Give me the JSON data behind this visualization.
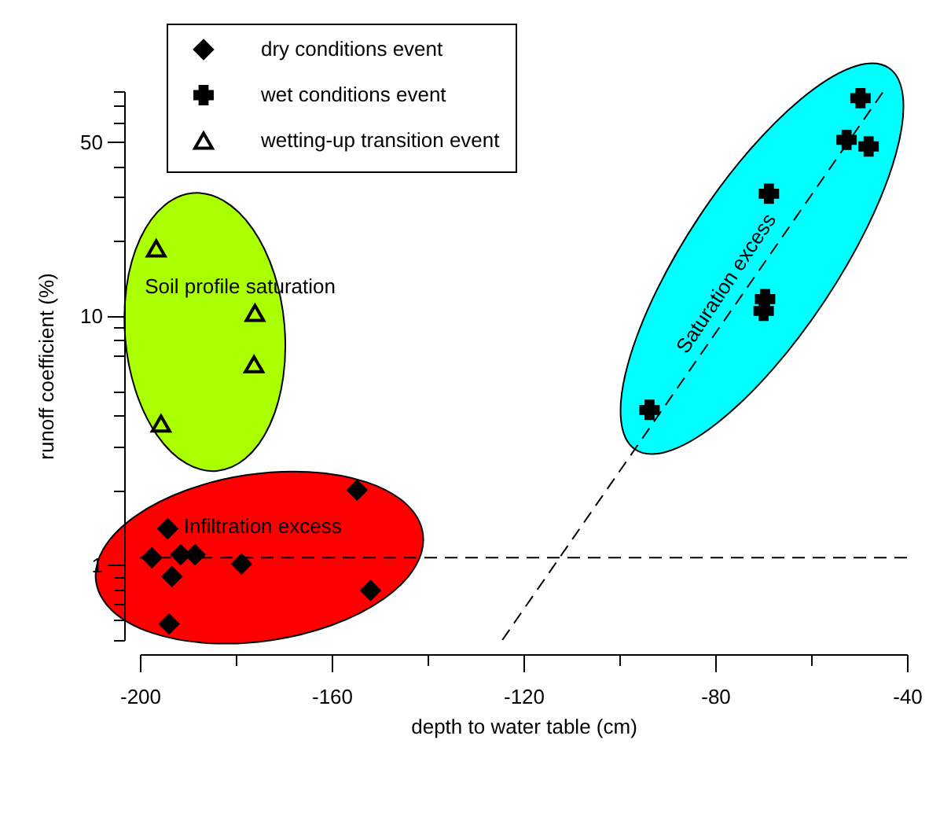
{
  "chart_data": {
    "type": "scatter",
    "xlabel": "depth to water table (cm)",
    "ylabel": "runoff coefficient (%)",
    "xlim": [
      -200,
      -40
    ],
    "xticks": [
      -200,
      {
        "value": -180,
        "label": null
      },
      -160,
      {
        "value": -140,
        "label": null
      },
      -120,
      {
        "value": -100,
        "label": null
      },
      -80,
      {
        "value": -60,
        "label": null
      },
      -40
    ],
    "ylim": [
      0.5,
      80
    ],
    "yticks": [
      {
        "value": 0.5,
        "label": null
      },
      {
        "value": 0.6,
        "label": null
      },
      {
        "value": 0.7,
        "label": null
      },
      {
        "value": 0.8,
        "label": null
      },
      {
        "value": 0.9,
        "label": null
      },
      1,
      {
        "value": 2,
        "label": null
      },
      {
        "value": 3,
        "label": null
      },
      {
        "value": 4,
        "label": null
      },
      {
        "value": 5,
        "label": null
      },
      {
        "value": 7,
        "label": null
      },
      {
        "value": 8,
        "label": null
      },
      {
        "value": 9,
        "label": null
      },
      10,
      {
        "value": 20,
        "label": null
      },
      {
        "value": 30,
        "label": null
      },
      {
        "value": 40,
        "label": null
      },
      50,
      {
        "value": 60,
        "label": null
      },
      {
        "value": 70,
        "label": null
      },
      {
        "value": 80,
        "label": null
      }
    ],
    "log": "y",
    "legend": "top left",
    "series": [
      {
        "name": "dry conditions event",
        "color": "#000000",
        "marker": "diamond",
        "x": [
          -194.2,
          -197.5,
          -191.5,
          -188.5,
          -193.3,
          -193.9,
          -178.8,
          -154.7,
          -151.9
        ],
        "values": [
          1.4,
          1.07,
          1.1,
          1.1,
          0.9,
          0.58,
          1.01,
          2.0,
          0.79
        ]
      },
      {
        "name": "wet conditions event",
        "color": "#000000",
        "marker": "cross",
        "x": [
          -49.7,
          -52.6,
          -48,
          -68.8,
          -69.6,
          -69.9,
          -93.7
        ],
        "values": [
          75,
          51,
          48,
          31,
          11.7,
          10.5,
          4.2
        ]
      },
      {
        "name": "wetting-up transition event",
        "color": "#000000",
        "marker": "triangle",
        "x": [
          -196.6,
          -176,
          -176.2,
          -195.6
        ],
        "values": [
          18.7,
          10.3,
          6.4,
          3.7
        ]
      },
      {
        "type": "line",
        "color": "#000000",
        "marker": "none",
        "line_style": "dashed",
        "x": [
          -124.4,
          -44.9
        ],
        "values": [
          0.5,
          80
        ]
      }
    ],
    "ref_lines": [
      {
        "axis": "y",
        "value": 1.07,
        "color": "#000000",
        "line_style": "dashed"
      }
    ],
    "annotations": [
      "Infiltration excess",
      "Saturation excess",
      "Soil profile saturation"
    ]
  }
}
